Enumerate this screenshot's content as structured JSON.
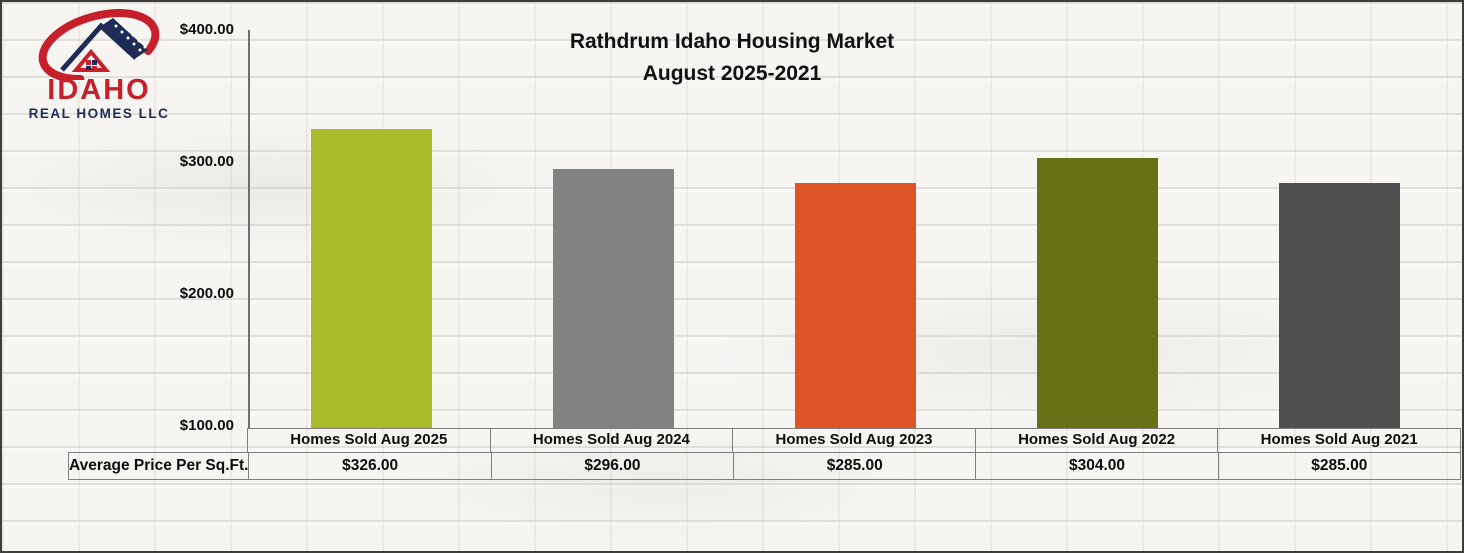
{
  "logo": {
    "name": "IDAHO",
    "subtitle": "REAL HOMES LLC",
    "red": "#c5202b",
    "navy": "#1d2b56"
  },
  "chart_data": {
    "type": "bar",
    "title": "Rathdrum Idaho Housing Market",
    "subtitle": "August 2025-2021",
    "categories": [
      "Homes Sold Aug 2025",
      "Homes Sold Aug 2024",
      "Homes Sold Aug 2023",
      "Homes Sold Aug 2022",
      "Homes Sold Aug 2021"
    ],
    "series": [
      {
        "name": "Average Price Per Sq.Ft.",
        "values": [
          326,
          296,
          285,
          304,
          285
        ]
      }
    ],
    "value_labels": [
      "$326.00",
      "$296.00",
      "$285.00",
      "$304.00",
      "$285.00"
    ],
    "bar_colors": [
      "#a9ba2b",
      "#828282",
      "#dd5527",
      "#667116",
      "#4f4f4f"
    ],
    "ylim": [
      100,
      400
    ],
    "y_tick_labels": [
      "$400.00",
      "$300.00",
      "$200.00",
      "$100.00"
    ],
    "grid": false,
    "legend_position": "none"
  },
  "table": {
    "row_label": "Average Price Per Sq.Ft."
  }
}
